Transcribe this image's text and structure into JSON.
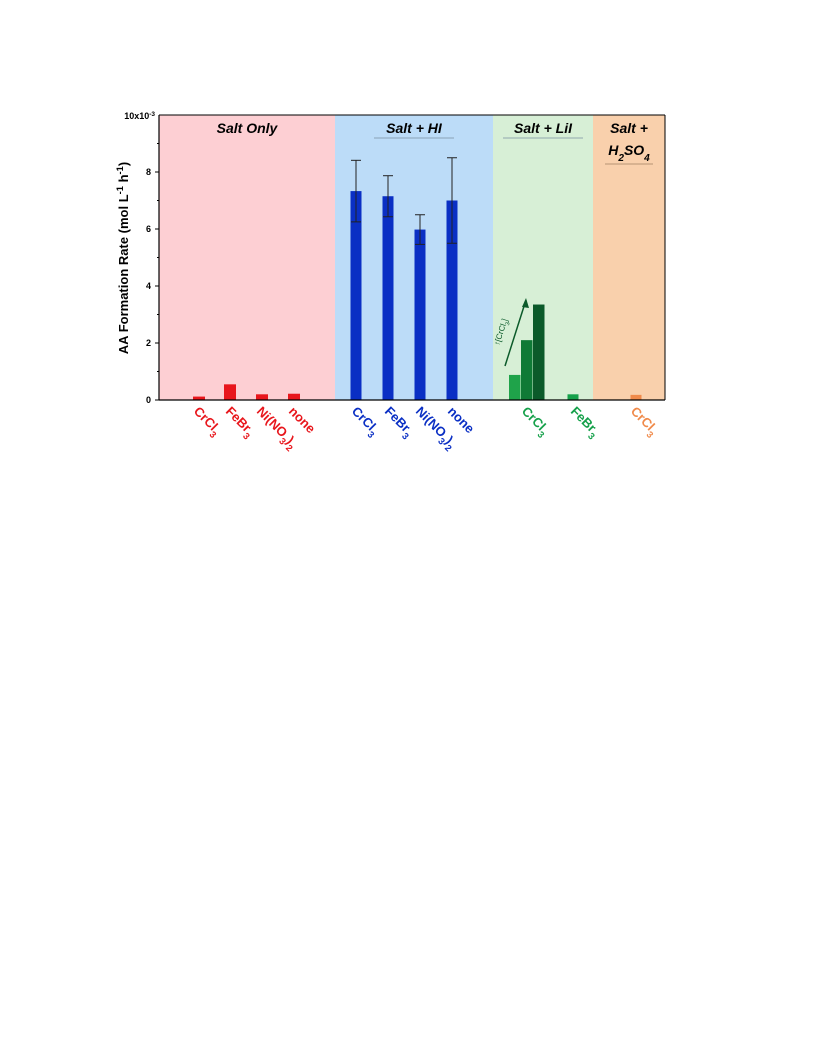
{
  "chart_data": {
    "type": "bar",
    "ylabel": "AA Formation Rate (mol L-1 h-1)",
    "y_multiplier": "10x10-3",
    "ylim": [
      0,
      0.01
    ],
    "yticks": [
      "0",
      "2",
      "4",
      "6",
      "8"
    ],
    "grid": false,
    "colors": {
      "salt_only_bg": "#fdcfd3",
      "salt_hi_bg": "#bcdcf8",
      "salt_lii_bg": "#d7efd6",
      "salt_h2so4_bg": "#f9d0ac",
      "red": "#e8161c",
      "blue": "#0a2fc4",
      "green": "#15a04a",
      "dark_green": "#0b5a2a",
      "orange": "#f08a4a"
    },
    "groups": [
      {
        "title": "Salt Only",
        "bars": [
          {
            "label": "CrCl3",
            "value": 0.00012
          },
          {
            "label": "FeBr3",
            "value": 0.00055
          },
          {
            "label": "Ni(NO3)2",
            "value": 0.0002
          },
          {
            "label": "none",
            "value": 0.00022
          }
        ]
      },
      {
        "title": "Salt + HI",
        "bars": [
          {
            "label": "CrCl3",
            "value": 0.00733,
            "error": 0.00108
          },
          {
            "label": "FeBr3",
            "value": 0.00715,
            "error": 0.00072
          },
          {
            "label": "Ni(NO3)2",
            "value": 0.00598,
            "error": 0.00052
          },
          {
            "label": "none",
            "value": 0.007,
            "error": 0.0015
          }
        ]
      },
      {
        "title": "Salt + LiI",
        "bars": [
          {
            "label": "CrCl3",
            "values": [
              0.00088,
              0.0021,
              0.00335
            ]
          },
          {
            "label": "FeBr3",
            "value": 0.0002
          }
        ],
        "annotation": "↑[CrCl3]"
      },
      {
        "title": "Salt + H2SO4",
        "bars": [
          {
            "label": "CrCl3",
            "value": 0.00018
          }
        ]
      }
    ]
  }
}
